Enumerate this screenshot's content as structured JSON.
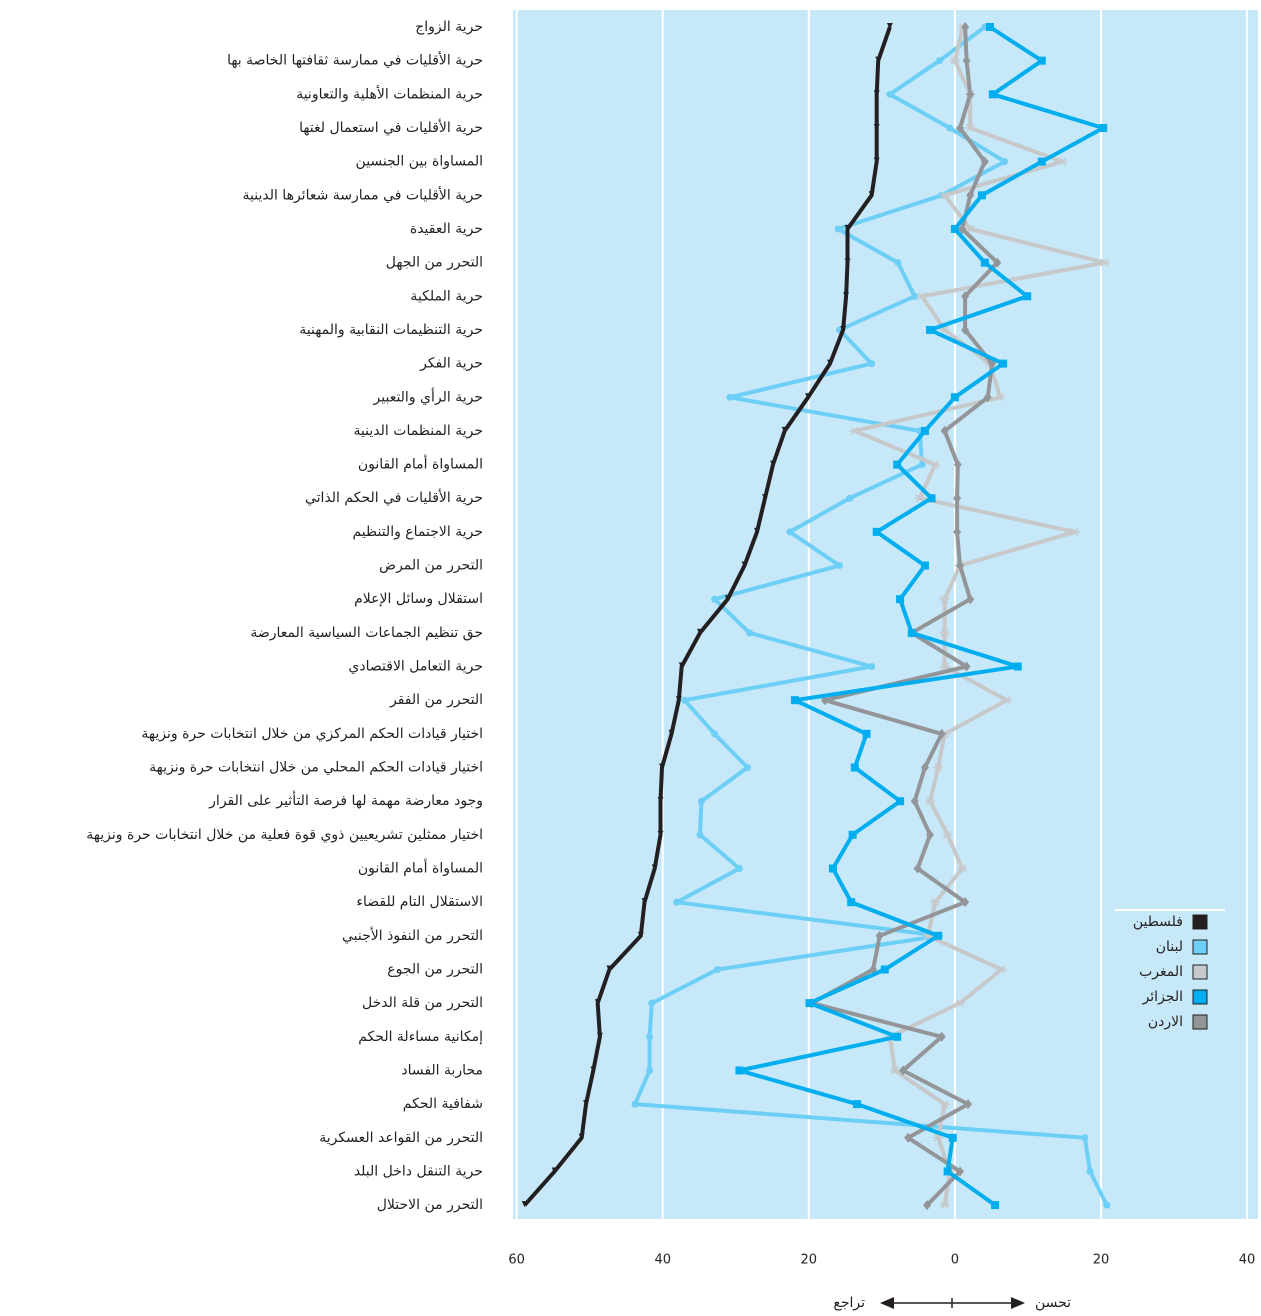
{
  "chart_data": {
    "type": "line",
    "orientation": "horizontal",
    "categories": [
      "حرية الزواج",
      "حرية الأقليات في ممارسة ثقافتها الخاصة بها",
      "حرية المنظمات الأهلية والتعاونية",
      "حرية الأقليات في استعمال لغتها",
      "المساواة بين الجنسين",
      "حرية الأقليات في ممارسة شعائرها الدينية",
      "حرية العقيدة",
      "التحرر من الجهل",
      "حرية الملكية",
      "حرية التنظيمات النقابية والمهنية",
      "حرية الفكر",
      "حرية الرأي والتعبير",
      "حرية المنظمات الدينية",
      "المساواة أمام القانون",
      "حرية الأقليات في الحكم الذاتي",
      "حرية الاجتماع والتنظيم",
      "التحرر من المرض",
      "استقلال وسائل الإعلام",
      "حق تنظيم الجماعات السياسية المعارضة",
      "حرية التعامل الاقتصادي",
      "التحرر من الفقر",
      "اختيار قيادات الحكم المركزي من خلال انتخابات حرة ونزيهة",
      "اختيار قيادات الحكم المحلي من خلال انتخابات حرة ونزيهة",
      "وجود معارضة مهمة لها فرصة التأثير على القرار",
      "اختيار ممثلين تشريعيين ذوي قوة فعلية من خلال انتخابات حرة ونزيهة",
      "المساواة أمام القانون",
      "الاستقلال التام للقضاء",
      "التحرر من النفوذ الأجنبي",
      "التحرر من الجوع",
      "التحرر من قلة الدخل",
      "إمكانية مساءلة الحكم",
      "محاربة الفساد",
      "شفافية الحكم",
      "التحرر من القواعد العسكرية",
      "حرية التنقل داخل البلد",
      "التحرر من الاحتلال"
    ],
    "series": [
      {
        "name": "فلسطين",
        "color": "#231f20",
        "values": [
          -8.9,
          -10.5,
          -10.7,
          -10.7,
          -10.7,
          -11.4,
          -14.7,
          -14.7,
          -14.9,
          -15.3,
          -17.1,
          -20.1,
          -23.3,
          -24.9,
          -26,
          -27.1,
          -28.8,
          -31.1,
          -34.9,
          -37.4,
          -37.8,
          -38.8,
          -40.1,
          -40.3,
          -40.3,
          -41.1,
          -42.5,
          -43,
          -47.3,
          -48.9,
          -48.6,
          -49.5,
          -50.5,
          -51.1,
          -54.8,
          -58.9
        ]
      },
      {
        "name": "لبنان",
        "color": "#6dcff6",
        "values": [
          4.1,
          -2.1,
          -8.9,
          -0.7,
          6.8,
          -1.8,
          -16,
          -7.8,
          -5.5,
          -15.8,
          -11.4,
          -30.8,
          -4.8,
          -4.5,
          -14.4,
          -22.6,
          -15.8,
          -32.9,
          -28.1,
          -11.4,
          -37,
          -32.9,
          -28.4,
          -34.7,
          -34.9,
          -29.5,
          -38.1,
          -2.1,
          -32.5,
          -41.5,
          -41.8,
          -41.8,
          -43.8,
          17.8,
          18.5,
          20.8
        ]
      },
      {
        "name": "المغرب",
        "color": "#c7c8ca",
        "values": [
          1.1,
          0,
          2.1,
          2.1,
          14.7,
          -1.4,
          2.1,
          20.5,
          -4.5,
          -1.4,
          4.8,
          6.2,
          -13.7,
          -2.7,
          -4.8,
          16.4,
          0.7,
          -1.4,
          -1.4,
          -1.4,
          7.1,
          -1.4,
          -2.3,
          -3.4,
          -1,
          1,
          -2.7,
          -3.7,
          6.4,
          0.7,
          -8.9,
          -8.2,
          -1.4,
          -2.3,
          -0.7,
          -1.4
        ]
      },
      {
        "name": "الجزائر",
        "color": "#00aeef",
        "values": [
          4.8,
          11.9,
          5.2,
          20.3,
          11.9,
          3.7,
          0,
          4.1,
          9.9,
          -3.4,
          6.6,
          0,
          -4.1,
          -7.9,
          -3.2,
          -10.7,
          -4.1,
          -7.5,
          -5.9,
          8.6,
          -21.9,
          -12.1,
          -13.7,
          -7.5,
          -14,
          -16.7,
          -14.2,
          -2.3,
          -9.6,
          -19.9,
          -7.9,
          -29.5,
          -13.4,
          -0.3,
          -1,
          5.5
        ]
      },
      {
        "name": "الاردن",
        "color": "#939598",
        "values": [
          1.4,
          1.6,
          2.1,
          0.7,
          4.1,
          2.1,
          1,
          5.8,
          1.4,
          1.4,
          5.1,
          4.5,
          -1.4,
          0.4,
          0.3,
          0.3,
          0.7,
          2.1,
          -5.9,
          1.6,
          -17.8,
          -1.8,
          -4.1,
          -5.5,
          -3.4,
          -5.1,
          1.4,
          -10.3,
          -11.2,
          -19.6,
          -1.8,
          -7.1,
          1.8,
          -6.4,
          0.7,
          -3.8
        ]
      }
    ],
    "xlim": [
      -60.5,
      41.5
    ],
    "xticks": [
      {
        "value": -60,
        "label": "60"
      },
      {
        "value": -40,
        "label": "40"
      },
      {
        "value": -20,
        "label": "20"
      },
      0,
      20,
      40
    ],
    "grid": true,
    "legend": "lower right",
    "annotations": {
      "decline": "تراجع",
      "improve": "تحسن"
    }
  }
}
